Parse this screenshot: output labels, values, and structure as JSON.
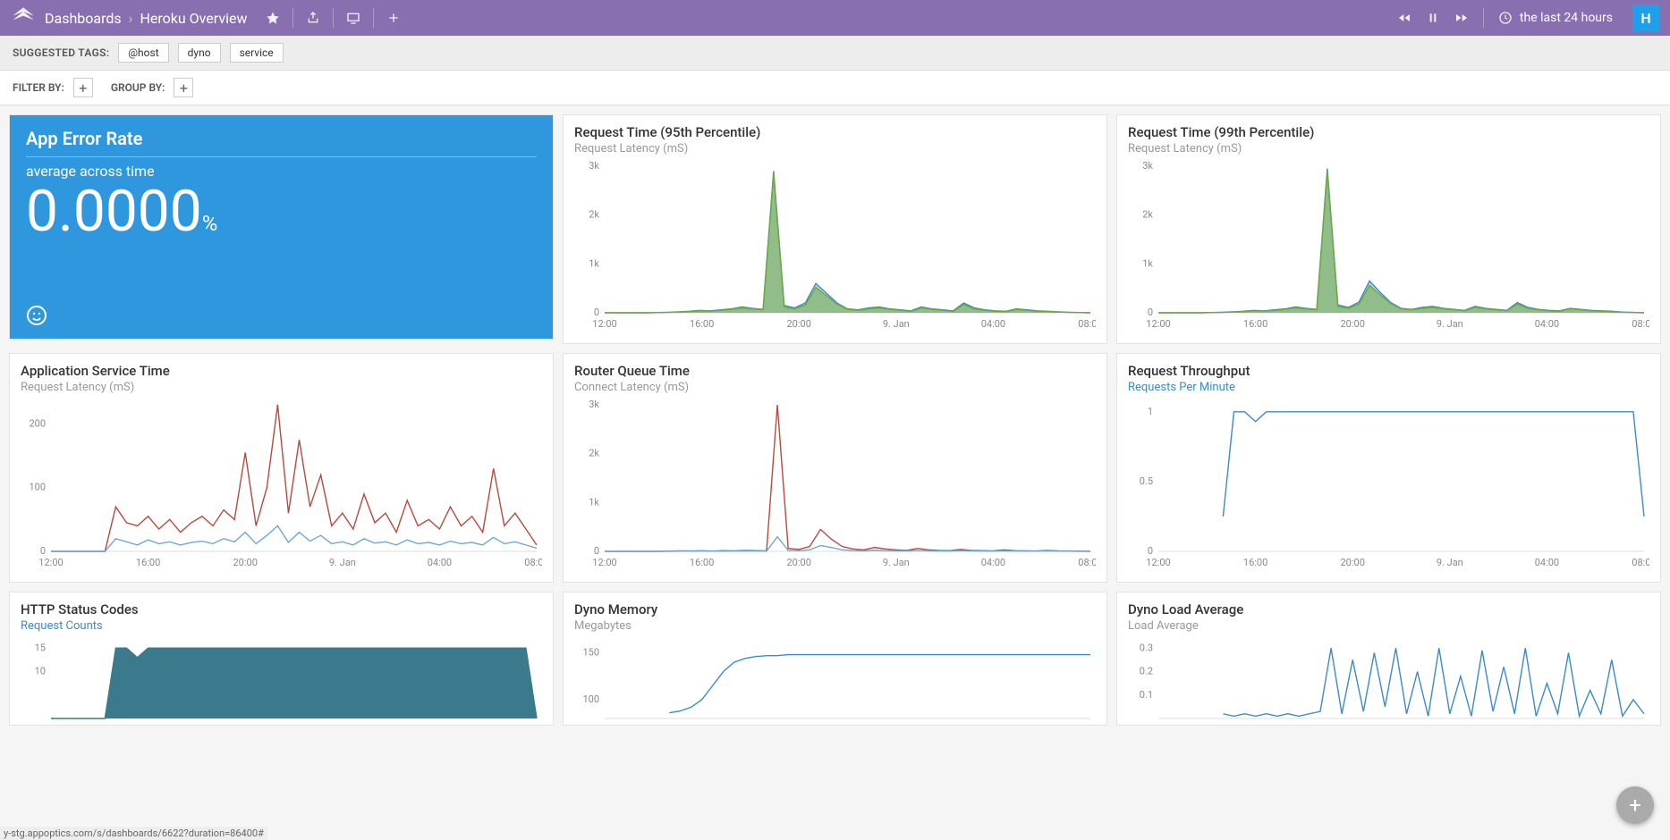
{
  "header": {
    "breadcrumb_root": "Dashboards",
    "breadcrumb_current": "Heroku Overview",
    "timerange": "the last 24 hours",
    "avatar_initial": "H"
  },
  "tagbar": {
    "label": "SUGGESTED TAGS:",
    "tags": [
      "@host",
      "dyno",
      "service"
    ]
  },
  "filterbar": {
    "filter_label": "FILTER BY:",
    "group_label": "GROUP BY:"
  },
  "panels": {
    "error_rate": {
      "title": "App Error Rate",
      "subtitle": "average across time",
      "value": "0.0000",
      "unit": "%",
      "bg_color": "#2f97dd"
    },
    "req95": {
      "title": "Request Time (95th Percentile)",
      "subtitle": "Request Latency (mS)",
      "type": "area",
      "ylim": [
        0,
        3000
      ],
      "yticks": [
        0,
        1000,
        2000,
        3000
      ],
      "yticklabels": [
        "0",
        "1k",
        "2k",
        "3k"
      ],
      "xlabels": [
        "12:00",
        "16:00",
        "20:00",
        "9. Jan",
        "04:00",
        "08:00"
      ],
      "series": [
        {
          "color": "#3a8bc9",
          "fill": "rgba(58,139,201,0.35)",
          "values": [
            0,
            0,
            0,
            0,
            0,
            5,
            10,
            20,
            30,
            50,
            40,
            60,
            80,
            120,
            90,
            70,
            2900,
            150,
            100,
            200,
            600,
            400,
            200,
            80,
            60,
            100,
            120,
            80,
            60,
            40,
            120,
            80,
            60,
            40,
            200,
            100,
            60,
            40,
            30,
            80,
            60,
            40,
            30,
            20,
            10,
            5,
            0
          ]
        },
        {
          "color": "#70a83b",
          "fill": "rgba(112,168,59,0.55)",
          "values": [
            0,
            0,
            0,
            0,
            0,
            3,
            8,
            15,
            25,
            40,
            35,
            50,
            70,
            100,
            80,
            60,
            2850,
            120,
            80,
            160,
            520,
            350,
            180,
            70,
            50,
            80,
            100,
            70,
            50,
            30,
            100,
            70,
            50,
            30,
            170,
            80,
            50,
            30,
            25,
            70,
            50,
            30,
            25,
            15,
            8,
            3,
            0
          ]
        }
      ]
    },
    "req99": {
      "title": "Request Time (99th Percentile)",
      "subtitle": "Request Latency (mS)",
      "type": "area",
      "ylim": [
        0,
        3000
      ],
      "yticks": [
        0,
        1000,
        2000,
        3000
      ],
      "yticklabels": [
        "0",
        "1k",
        "2k",
        "3k"
      ],
      "xlabels": [
        "12:00",
        "16:00",
        "20:00",
        "9. Jan",
        "04:00",
        "08:00"
      ],
      "series": [
        {
          "color": "#3a8bc9",
          "fill": "rgba(58,139,201,0.35)",
          "values": [
            0,
            0,
            0,
            0,
            0,
            5,
            10,
            20,
            30,
            50,
            40,
            60,
            80,
            120,
            90,
            70,
            2950,
            160,
            110,
            220,
            650,
            420,
            210,
            90,
            70,
            110,
            130,
            90,
            70,
            50,
            130,
            90,
            70,
            50,
            210,
            110,
            70,
            50,
            40,
            90,
            70,
            50,
            40,
            30,
            15,
            8,
            0
          ]
        },
        {
          "color": "#70a83b",
          "fill": "rgba(112,168,59,0.55)",
          "values": [
            0,
            0,
            0,
            0,
            0,
            3,
            8,
            15,
            25,
            40,
            35,
            50,
            70,
            100,
            80,
            60,
            2900,
            130,
            90,
            180,
            560,
            370,
            190,
            80,
            60,
            90,
            110,
            80,
            60,
            40,
            110,
            80,
            60,
            40,
            180,
            90,
            60,
            40,
            30,
            80,
            60,
            40,
            30,
            20,
            10,
            5,
            0
          ]
        }
      ]
    },
    "app_service": {
      "title": "Application Service Time",
      "subtitle": "Request Latency (mS)",
      "type": "line",
      "ylim": [
        0,
        230
      ],
      "yticks": [
        0,
        100,
        200
      ],
      "yticklabels": [
        "0",
        "100",
        "200"
      ],
      "xlabels": [
        "12:00",
        "16:00",
        "20:00",
        "9. Jan",
        "04:00",
        "08:00"
      ],
      "series": [
        {
          "color": "#b84a3c",
          "values": [
            0,
            0,
            0,
            0,
            0,
            0,
            70,
            45,
            40,
            55,
            35,
            50,
            30,
            45,
            55,
            40,
            65,
            50,
            155,
            40,
            100,
            230,
            60,
            175,
            70,
            120,
            40,
            60,
            35,
            90,
            45,
            60,
            30,
            80,
            40,
            50,
            35,
            70,
            40,
            55,
            30,
            130,
            40,
            60,
            35,
            10
          ]
        },
        {
          "color": "#6fa8d6",
          "values": [
            0,
            0,
            0,
            0,
            0,
            0,
            20,
            15,
            10,
            18,
            12,
            15,
            10,
            14,
            16,
            12,
            20,
            15,
            30,
            12,
            25,
            40,
            14,
            30,
            16,
            25,
            12,
            15,
            10,
            20,
            13,
            15,
            10,
            18,
            12,
            14,
            10,
            16,
            12,
            14,
            10,
            22,
            12,
            15,
            10,
            5
          ]
        }
      ]
    },
    "router_queue": {
      "title": "Router Queue Time",
      "subtitle": "Connect Latency (mS)",
      "type": "line",
      "ylim": [
        0,
        3000
      ],
      "yticks": [
        0,
        1000,
        2000,
        3000
      ],
      "yticklabels": [
        "0",
        "1k",
        "2k",
        "3k"
      ],
      "xlabels": [
        "12:00",
        "16:00",
        "20:00",
        "9. Jan",
        "04:00",
        "08:00"
      ],
      "series": [
        {
          "color": "#b84a3c",
          "values": [
            0,
            0,
            0,
            0,
            0,
            0,
            5,
            10,
            8,
            12,
            6,
            15,
            10,
            20,
            15,
            10,
            3000,
            60,
            40,
            100,
            450,
            250,
            100,
            50,
            30,
            80,
            50,
            30,
            20,
            60,
            30,
            20,
            15,
            40,
            20,
            15,
            10,
            30,
            15,
            10,
            8,
            20,
            10,
            8,
            5,
            0
          ]
        },
        {
          "color": "#6fa8d6",
          "values": [
            0,
            0,
            0,
            0,
            0,
            0,
            2,
            4,
            3,
            5,
            3,
            6,
            4,
            8,
            6,
            4,
            300,
            20,
            15,
            30,
            120,
            80,
            30,
            15,
            10,
            25,
            15,
            10,
            8,
            20,
            10,
            8,
            6,
            15,
            8,
            6,
            4,
            10,
            6,
            4,
            3,
            8,
            4,
            3,
            2,
            0
          ]
        }
      ]
    },
    "throughput": {
      "title": "Request Throughput",
      "subtitle": "Requests Per Minute",
      "subtitle_link": true,
      "type": "line",
      "ylim": [
        0,
        1.05
      ],
      "yticks": [
        0,
        0.5,
        1
      ],
      "yticklabels": [
        "0",
        "0.5",
        "1"
      ],
      "xlabels": [
        "12:00",
        "16:00",
        "20:00",
        "9. Jan",
        "04:00",
        "08:00"
      ],
      "series": [
        {
          "color": "#3a8bc9",
          "values": [
            null,
            null,
            null,
            null,
            null,
            null,
            0.25,
            1,
            1,
            0.93,
            1,
            1,
            1,
            1,
            1,
            1,
            1,
            1,
            1,
            1,
            1,
            1,
            1,
            1,
            1,
            1,
            1,
            1,
            1,
            1,
            1,
            1,
            1,
            1,
            1,
            1,
            1,
            1,
            1,
            1,
            1,
            1,
            1,
            1,
            1,
            0.25
          ]
        }
      ]
    },
    "http_status": {
      "title": "HTTP Status Codes",
      "subtitle": "Request Counts",
      "subtitle_link": true,
      "type": "area",
      "ylim": [
        0,
        16
      ],
      "yticks": [
        10,
        15
      ],
      "yticklabels": [
        "10",
        "15"
      ],
      "xlabels": [],
      "series": [
        {
          "color": "#3a7a8c",
          "fill": "#3a7a8c",
          "values": [
            0,
            0,
            0,
            0,
            0,
            0,
            15,
            15,
            13,
            15,
            15,
            15,
            15,
            15,
            15,
            15,
            15,
            15,
            15,
            15,
            15,
            15,
            15,
            15,
            15,
            15,
            15,
            15,
            15,
            15,
            15,
            15,
            15,
            15,
            15,
            15,
            15,
            15,
            15,
            15,
            15,
            15,
            15,
            15,
            15,
            0
          ]
        }
      ]
    },
    "dyno_mem": {
      "title": "Dyno Memory",
      "subtitle": "Megabytes",
      "type": "line",
      "ylim": [
        80,
        160
      ],
      "yticks": [
        100,
        150
      ],
      "yticklabels": [
        "100",
        "150"
      ],
      "xlabels": [],
      "series": [
        {
          "color": "#3a8bc9",
          "values": [
            null,
            null,
            null,
            null,
            null,
            null,
            86,
            88,
            92,
            100,
            115,
            130,
            140,
            144,
            146,
            147,
            147,
            148,
            148,
            148,
            148,
            148,
            148,
            148,
            148,
            148,
            148,
            148,
            148,
            148,
            148,
            148,
            148,
            148,
            148,
            148,
            148,
            148,
            148,
            148,
            148,
            148,
            148,
            148,
            148,
            148
          ]
        }
      ]
    },
    "dyno_load": {
      "title": "Dyno Load Average",
      "subtitle": "Load Average",
      "type": "line",
      "ylim": [
        0,
        0.32
      ],
      "yticks": [
        0.1,
        0.2,
        0.3
      ],
      "yticklabels": [
        "0.1",
        "0.2",
        "0.3"
      ],
      "xlabels": [],
      "series": [
        {
          "color": "#3a8bc9",
          "values": [
            null,
            null,
            null,
            null,
            null,
            null,
            0.02,
            0.01,
            0.02,
            0.01,
            0.02,
            0.01,
            0.02,
            0.01,
            0.02,
            0.03,
            0.3,
            0.02,
            0.25,
            0.03,
            0.28,
            0.05,
            0.3,
            0.02,
            0.2,
            0.01,
            0.3,
            0.02,
            0.18,
            0.01,
            0.29,
            0.03,
            0.22,
            0.02,
            0.3,
            0.01,
            0.15,
            0.02,
            0.28,
            0.01,
            0.12,
            0.02,
            0.25,
            0.01,
            0.08,
            0.02
          ]
        }
      ]
    }
  },
  "statusbar": "y-stg.appoptics.com/s/dashboards/6622?duration=86400#",
  "colors": {
    "topbar": "#8870b0",
    "accent": "#2f97dd"
  }
}
